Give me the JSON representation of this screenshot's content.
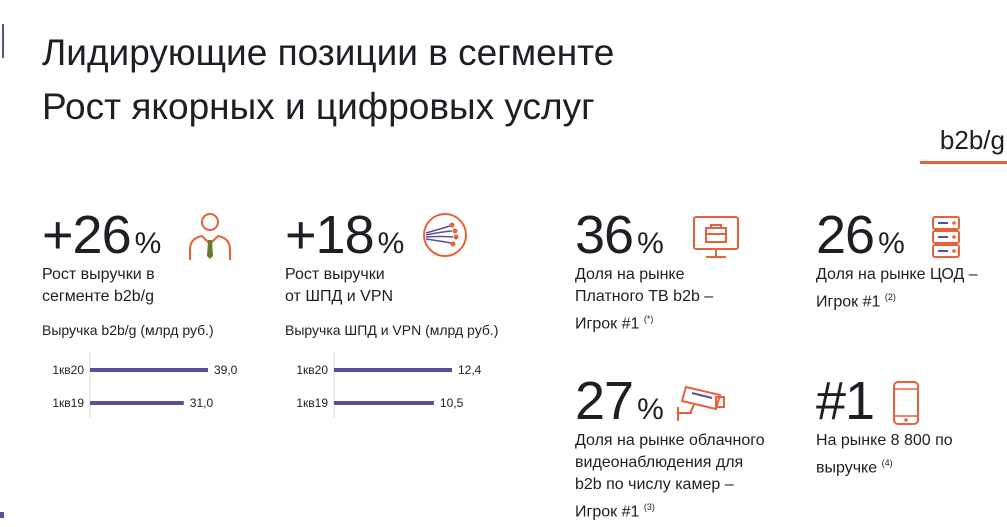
{
  "header": {
    "title_line1": "Лидирующие позиции в сегменте",
    "title_line2": "Рост якорных и цифровых услуг",
    "segment_tag": "b2b/g"
  },
  "colors": {
    "accent": "#e8613a",
    "bar": "#5b4f97",
    "text": "#1e1e24"
  },
  "kpis": {
    "revenue": {
      "value": "+26",
      "unit": "%",
      "line1": "Рост выручки в",
      "line2": "сегменте b2b/g",
      "icon": "business-person-icon"
    },
    "broadband": {
      "value": "+18",
      "unit": "%",
      "line1": "Рост выручки",
      "line2": "от ШПД и VPN",
      "icon": "fiber-optic-icon"
    },
    "paytv": {
      "value": "36",
      "unit": "%",
      "line1": "Доля на рынке",
      "line2": "Платного ТВ b2b –",
      "line3": "Игрок #1",
      "footnote": "(*)",
      "icon": "tv-briefcase-icon"
    },
    "datacenter": {
      "value": "26",
      "unit": "%",
      "line1": "Доля на рынке ЦОД –",
      "line2": "Игрок #1",
      "footnote": "(2)",
      "icon": "server-rack-icon"
    },
    "cloud_video": {
      "value": "27",
      "unit": "%",
      "line1": "Доля на рынке облачного",
      "line2": "видеонаблюдения для",
      "line3": "b2b по числу камер –",
      "line4": "Игрок #1",
      "footnote": "(3)",
      "icon": "security-camera-icon"
    },
    "hotline": {
      "value": "#1",
      "line1": "На рынке 8 800 по",
      "line2": "выручке",
      "footnote": "(4)",
      "icon": "smartphone-icon"
    }
  },
  "chart_data": [
    {
      "type": "bar",
      "title": "Выручка b2b/g (млрд руб.)",
      "categories": [
        "1кв20",
        "1кв19"
      ],
      "values": [
        39.0,
        31.0
      ],
      "value_labels": [
        "39,0",
        "31,0"
      ],
      "xlim": [
        0,
        39.0
      ]
    },
    {
      "type": "bar",
      "title": "Выручка ШПД и VPN (млрд руб.)",
      "categories": [
        "1кв20",
        "1кв19"
      ],
      "values": [
        12.4,
        10.5
      ],
      "value_labels": [
        "12,4",
        "10,5"
      ],
      "xlim": [
        0,
        12.4
      ]
    }
  ]
}
